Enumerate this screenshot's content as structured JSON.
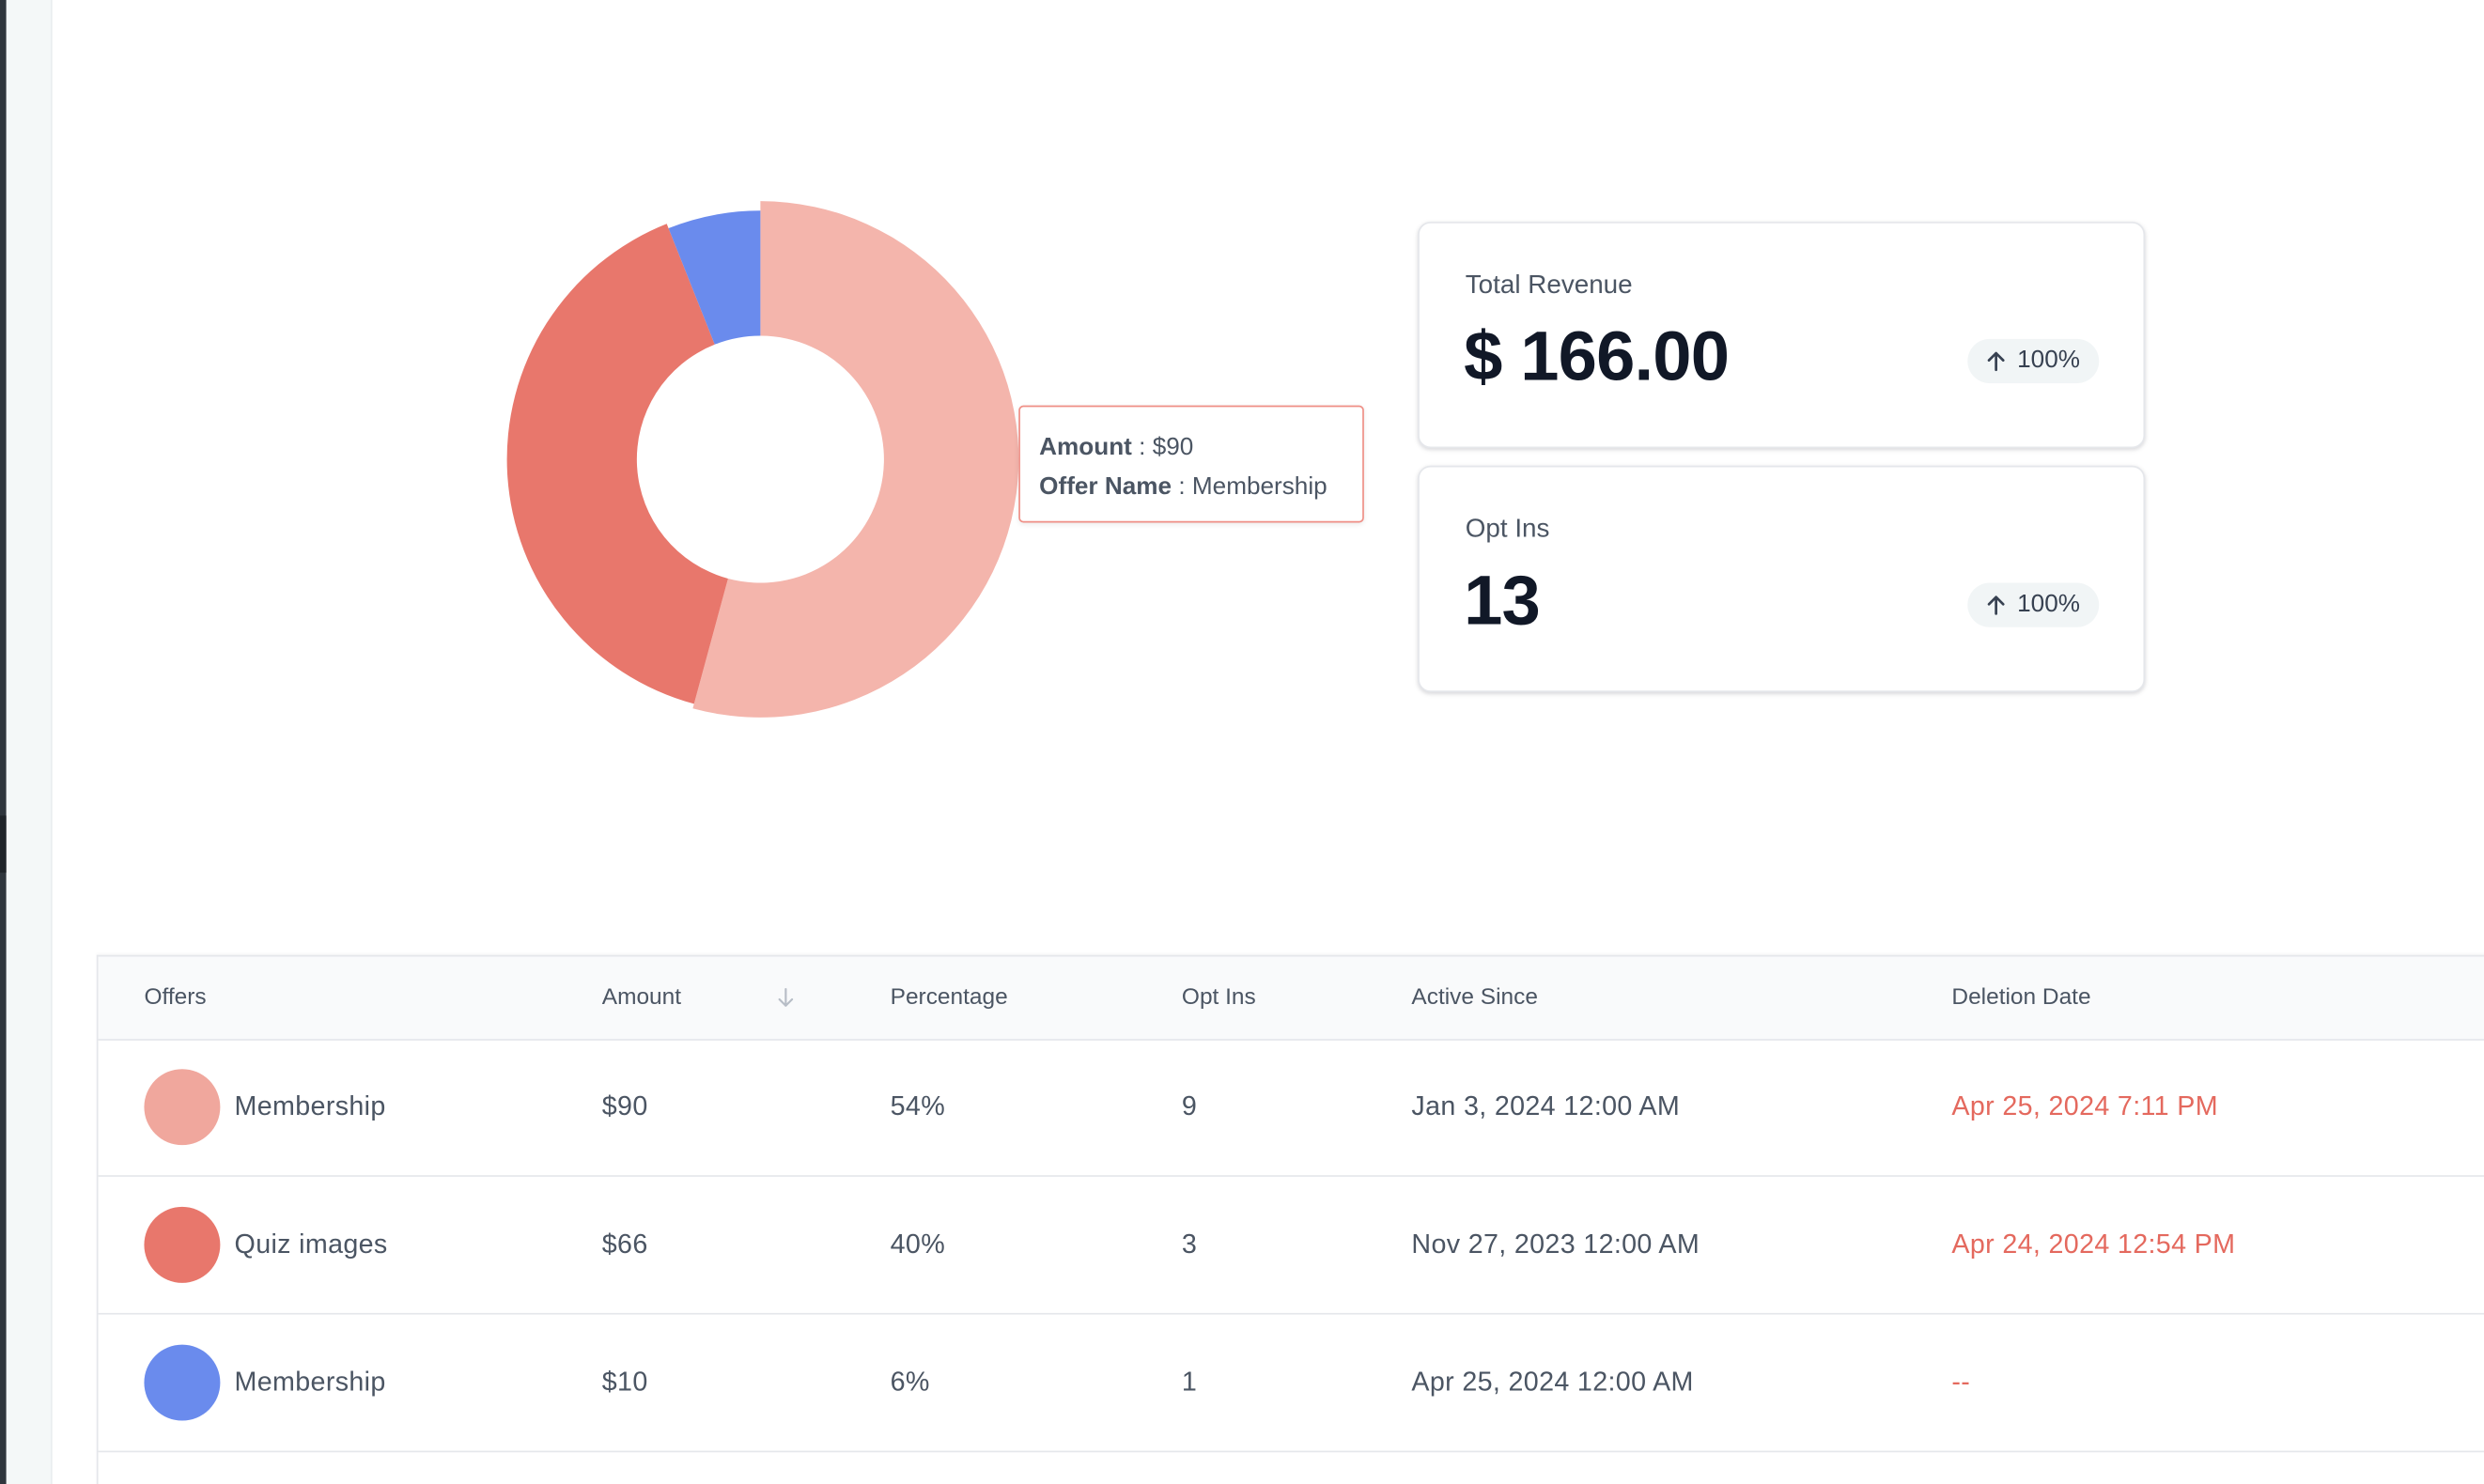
{
  "chart_data": {
    "type": "pie",
    "style": "donut",
    "categories": [
      "Membership",
      "Quiz images",
      "Membership"
    ],
    "values": [
      90,
      66,
      10
    ],
    "colors": [
      "#f4b5ac",
      "#e8776c",
      "#6a8bed"
    ]
  },
  "tooltip": {
    "amount_label": "Amount",
    "amount_value": "$90",
    "offer_label": "Offer Name",
    "offer_value": "Membership"
  },
  "cards": {
    "revenue": {
      "label": "Total Revenue",
      "value": "$ 166.00",
      "change": "100%"
    },
    "optins": {
      "label": "Opt Ins",
      "value": "13",
      "change": "100%"
    }
  },
  "table": {
    "headers": {
      "offers": "Offers",
      "amount": "Amount",
      "percentage": "Percentage",
      "opt_ins": "Opt Ins",
      "active_since": "Active Since",
      "deletion_date": "Deletion Date"
    },
    "rows": [
      {
        "color": "#f0a79d",
        "offer": "Membership",
        "amount": "$90",
        "percentage": "54%",
        "opt_ins": "9",
        "active_since": "Jan 3, 2024 12:00 AM",
        "deletion_date": "Apr 25, 2024 7:11 PM"
      },
      {
        "color": "#e8776c",
        "offer": "Quiz images",
        "amount": "$66",
        "percentage": "40%",
        "opt_ins": "3",
        "active_since": "Nov 27, 2023 12:00 AM",
        "deletion_date": "Apr 24, 2024 12:54 PM"
      },
      {
        "color": "#6a8bed",
        "offer": "Membership",
        "amount": "$10",
        "percentage": "6%",
        "opt_ins": "1",
        "active_since": "Apr 25, 2024 12:00 AM",
        "deletion_date": "--"
      }
    ]
  },
  "colors": {
    "deletion_text": "#e4695e",
    "tooltip_border": "#ef8f86",
    "value_text": "#111827"
  },
  "icons": {
    "badge": "arrow-up-icon",
    "sort": "arrow-down-icon"
  }
}
